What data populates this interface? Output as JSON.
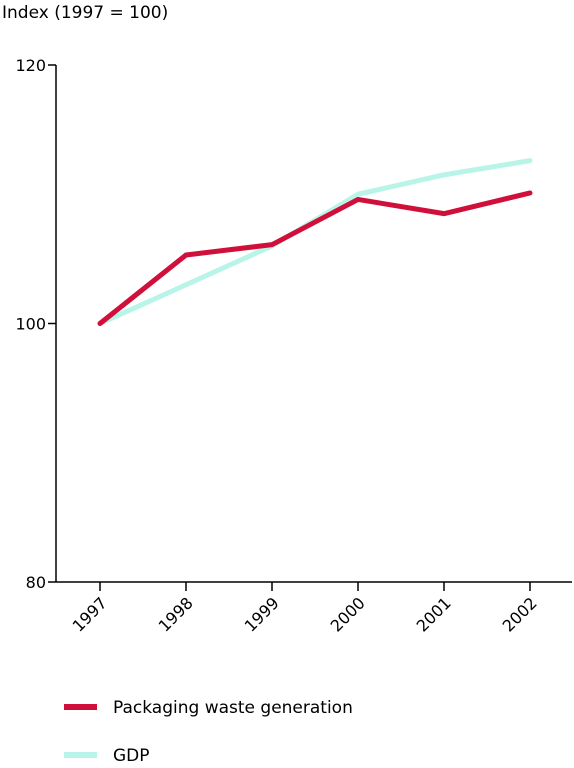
{
  "chart_data": {
    "type": "line",
    "ylabel": "Index (1997 = 100)",
    "xlabel": "",
    "categories": [
      "1997",
      "1998",
      "1999",
      "2000",
      "2001",
      "2002"
    ],
    "ylim": [
      80,
      120
    ],
    "yticks": [
      80,
      100,
      120
    ],
    "grid": false,
    "legend_position": "bottom-left",
    "series": [
      {
        "name": "GDP",
        "color": "#b8f5e8",
        "values": [
          100,
          103,
          106,
          110,
          111.5,
          112.6
        ]
      },
      {
        "name": "Packaging waste generation",
        "color": "#d0103a",
        "values": [
          100,
          105.3,
          106.1,
          109.6,
          108.5,
          110.1
        ]
      }
    ]
  }
}
